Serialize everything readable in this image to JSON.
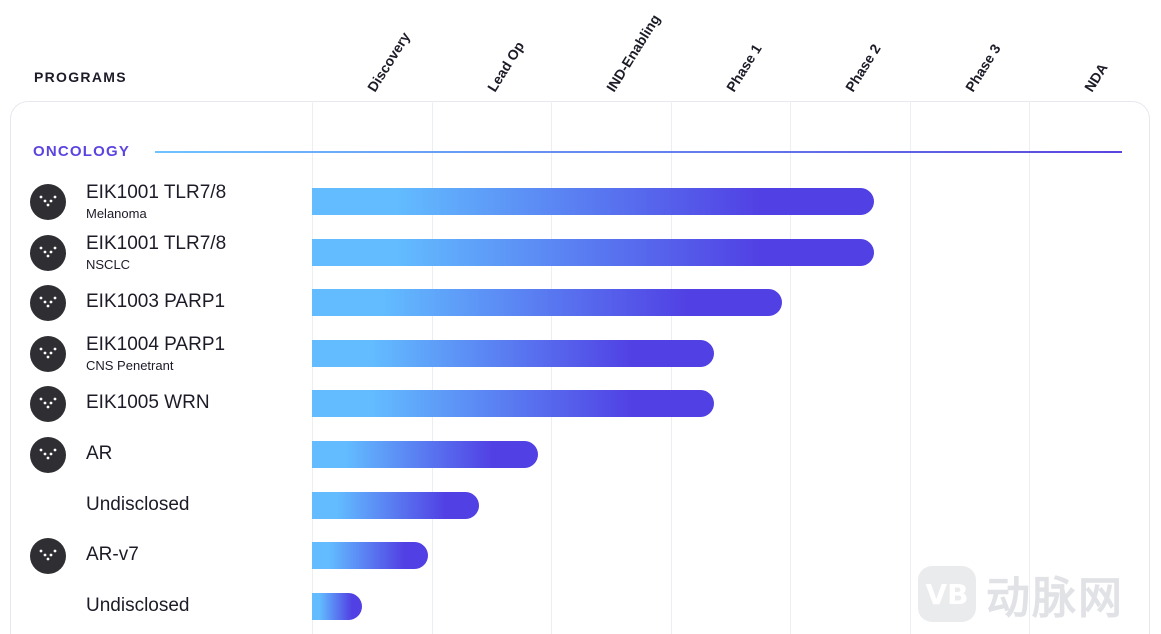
{
  "header": {
    "programs_label": "PROGRAMS"
  },
  "section": {
    "title": "ONCOLOGY"
  },
  "colors": {
    "bar_start": "#62bcff",
    "bar_end": "#5140e4",
    "accent": "#5b45e0"
  },
  "watermark": {
    "logo_text": "VB",
    "text": "动脉网"
  },
  "chart_data": {
    "type": "bar",
    "orientation": "horizontal",
    "title": "",
    "stages": [
      "Discovery",
      "Lead Op",
      "IND-Enabling",
      "Phase 1",
      "Phase 2",
      "Phase 3",
      "NDA"
    ],
    "xlim": [
      0,
      7
    ],
    "grid": true,
    "legend": "none",
    "programs": [
      {
        "name": "EIK1001 TLR7/8",
        "subtitle": "Melanoma",
        "icon": "company-logo-icon",
        "progress": 4.7
      },
      {
        "name": "EIK1001 TLR7/8",
        "subtitle": "NSCLC",
        "icon": "company-logo-icon",
        "progress": 4.7
      },
      {
        "name": "EIK1003 PARP1",
        "subtitle": "",
        "icon": "company-logo-icon",
        "progress": 3.93
      },
      {
        "name": "EIK1004 PARP1",
        "subtitle": "CNS Penetrant",
        "icon": "company-logo-icon",
        "progress": 3.36
      },
      {
        "name": "EIK1005 WRN",
        "subtitle": "",
        "icon": "company-logo-icon",
        "progress": 3.36
      },
      {
        "name": "AR",
        "subtitle": "",
        "icon": "company-logo-icon",
        "progress": 1.89
      },
      {
        "name": "Undisclosed",
        "subtitle": "",
        "icon": "",
        "progress": 1.4
      },
      {
        "name": "AR-v7",
        "subtitle": "",
        "icon": "company-logo-icon",
        "progress": 0.97
      },
      {
        "name": "Undisclosed",
        "subtitle": "",
        "icon": "",
        "progress": 0.42
      }
    ]
  }
}
